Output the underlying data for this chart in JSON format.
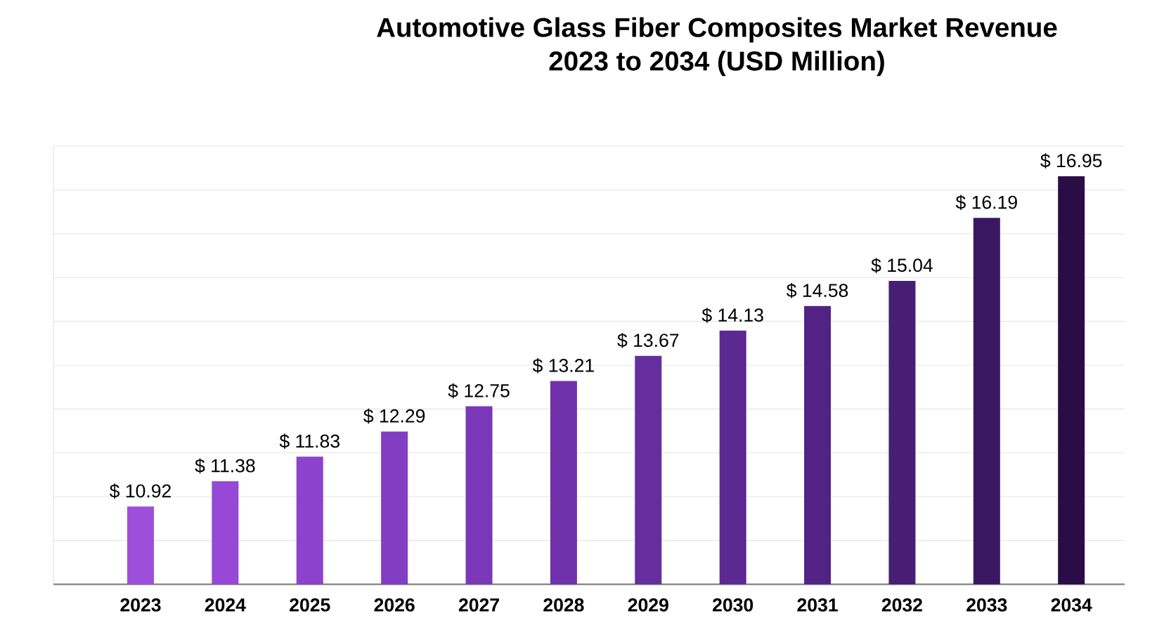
{
  "chart_data": {
    "type": "bar",
    "title": "Automotive Glass Fiber Composites Market Revenue\n2023 to 2034 (USD Million)",
    "categories": [
      "2023",
      "2024",
      "2025",
      "2026",
      "2027",
      "2028",
      "2029",
      "2030",
      "2031",
      "2032",
      "2033",
      "2034"
    ],
    "values": [
      10.92,
      11.38,
      11.83,
      12.29,
      12.75,
      13.21,
      13.67,
      14.13,
      14.58,
      15.04,
      16.19,
      16.95
    ],
    "value_labels": [
      "$ 10.92",
      "$ 11.38",
      "$ 11.83",
      "$ 12.29",
      "$ 12.75",
      "$ 13.21",
      "$ 13.67",
      "$ 14.13",
      "$ 14.58",
      "$ 15.04",
      "$ 16.19",
      "$ 16.95"
    ],
    "colors": [
      "#9d4fdc",
      "#9549d6",
      "#8c42cc",
      "#833dc2",
      "#7a37b8",
      "#7032ab",
      "#662d9e",
      "#5c2891",
      "#522383",
      "#471e73",
      "#3a1760",
      "#2a0d47"
    ],
    "ylim": [
      9.5,
      17.5
    ],
    "yticks": [
      {
        "value": 9.5,
        "label": null
      },
      {
        "value": 10.3,
        "label": null
      },
      {
        "value": 11.1,
        "label": null
      },
      {
        "value": 11.9,
        "label": null
      },
      {
        "value": 12.7,
        "label": null
      },
      {
        "value": 13.5,
        "label": null
      },
      {
        "value": 14.3,
        "label": null
      },
      {
        "value": 15.1,
        "label": null
      },
      {
        "value": 15.9,
        "label": null
      },
      {
        "value": 16.7,
        "label": null
      },
      {
        "value": 17.5,
        "label": null
      }
    ],
    "tick_labels": "x",
    "grid": "y"
  }
}
